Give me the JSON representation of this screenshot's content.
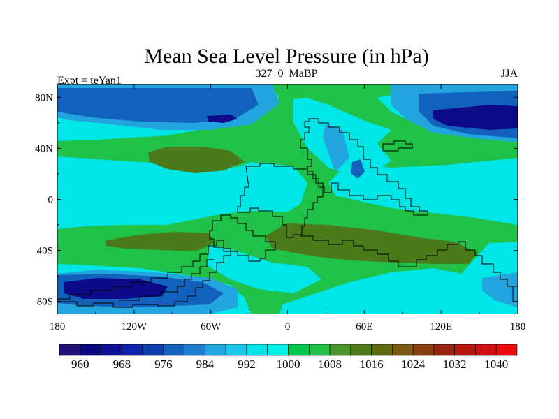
{
  "chart_data": {
    "type": "heatmap",
    "title": "Mean Sea Level Pressure (in hPa)",
    "left_label": "Expt = teYan1",
    "center_label": "327_0_MaBP",
    "right_label": "JJA",
    "projection": "cylindrical equidistant",
    "xlim": [
      -180,
      180
    ],
    "ylim": [
      -90,
      90
    ],
    "x_ticks": [
      {
        "value": -180,
        "label": "180"
      },
      {
        "value": -120,
        "label": "120W"
      },
      {
        "value": -60,
        "label": "60W"
      },
      {
        "value": 0,
        "label": "0"
      },
      {
        "value": 60,
        "label": "60E"
      },
      {
        "value": 120,
        "label": "120E"
      },
      {
        "value": 180,
        "label": "180"
      }
    ],
    "y_ticks": [
      {
        "value": 80,
        "label": "80N"
      },
      {
        "value": 40,
        "label": "40N"
      },
      {
        "value": 0,
        "label": "0"
      },
      {
        "value": -40,
        "label": "40S"
      },
      {
        "value": -80,
        "label": "80S"
      }
    ],
    "colorbar": {
      "levels": [
        960,
        964,
        968,
        972,
        976,
        980,
        984,
        988,
        992,
        996,
        1000,
        1004,
        1008,
        1012,
        1016,
        1020,
        1024,
        1028,
        1032,
        1036,
        1040
      ],
      "labels": [
        "960",
        "968",
        "976",
        "984",
        "992",
        "1000",
        "1008",
        "1016",
        "1024",
        "1032",
        "1040"
      ],
      "colors": [
        "#22107a",
        "#08087e",
        "#0a0f96",
        "#0d22a8",
        "#0a3dae",
        "#1262bd",
        "#1d7ecf",
        "#22a4de",
        "#1cc4ea",
        "#05e3ea",
        "#04f0e8",
        "#00c84e",
        "#22c044",
        "#4a962a",
        "#4f7a18",
        "#5b6b0e",
        "#7b5a12",
        "#8a3e10",
        "#9a2210",
        "#b5180d",
        "#d01010",
        "#ea0c0c"
      ]
    },
    "field_colors": {
      "low_deep": "#0d0a8a",
      "low_mid": "#1262bd",
      "low_light": "#22a4de",
      "near_1000": "#00e5e6",
      "mid_1008": "#1fc148",
      "high_1016": "#4b7a1b",
      "boundary": "#000000"
    }
  }
}
